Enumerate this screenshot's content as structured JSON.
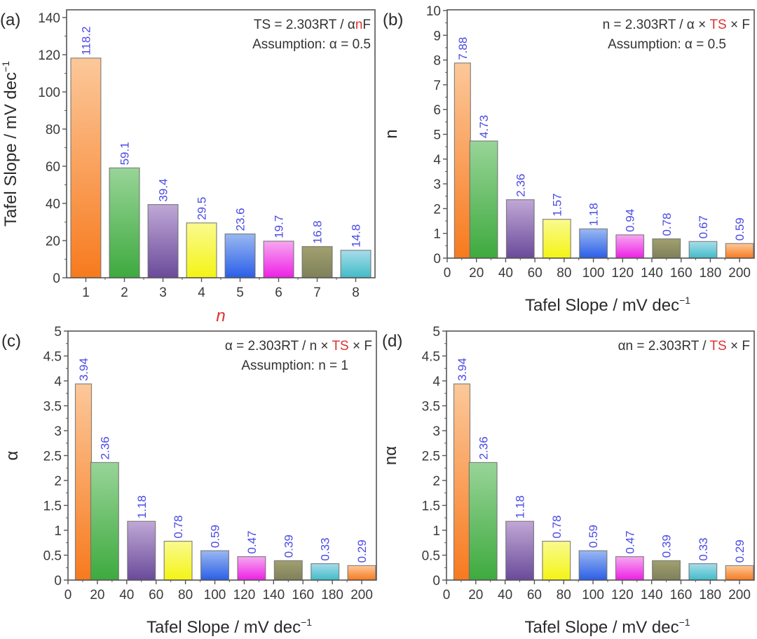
{
  "colors": {
    "value_label": "#4a4ae6",
    "highlight": "#e03030",
    "axis": "#555555",
    "bar_palette": [
      {
        "top": "#fcc89a",
        "bottom": "#f77a1e"
      },
      {
        "top": "#98d498",
        "bottom": "#3eaa3e"
      },
      {
        "top": "#c0a8d6",
        "bottom": "#6a4a9a"
      },
      {
        "top": "#fafa90",
        "bottom": "#f4f414"
      },
      {
        "top": "#9ab8f0",
        "bottom": "#2a5ee8"
      },
      {
        "top": "#f6a8f0",
        "bottom": "#ee20e6"
      },
      {
        "top": "#a0a070",
        "bottom": "#80805a"
      },
      {
        "top": "#a8dcea",
        "bottom": "#40bcc8"
      },
      {
        "top": "#fcc89a",
        "bottom": "#f77a1e"
      }
    ]
  },
  "chart_data": [
    {
      "panel": "(a)",
      "type": "bar",
      "xlabel_italic": "n",
      "ylabel": "Tafel Slope / mV dec",
      "ylabel_sup": "−1",
      "categories": [
        "1",
        "2",
        "3",
        "4",
        "5",
        "6",
        "7",
        "8"
      ],
      "x": [
        1,
        2,
        3,
        4,
        5,
        6,
        7,
        8
      ],
      "values": [
        118.2,
        59.1,
        39.4,
        29.5,
        23.6,
        19.7,
        16.8,
        14.8
      ],
      "value_labels": [
        "118.2",
        "59.1",
        "39.4",
        "29.5",
        "23.6",
        "19.7",
        "16.8",
        "14.8"
      ],
      "xlim": [
        0.5,
        8.5
      ],
      "ylim": [
        0,
        140
      ],
      "yticks": [
        0,
        20,
        40,
        60,
        80,
        100,
        120,
        140
      ],
      "ytick_labels": [
        "0",
        "20",
        "40",
        "60",
        "80",
        "100",
        "120",
        "140"
      ],
      "xticks": [
        1,
        2,
        3,
        4,
        5,
        6,
        7,
        8
      ],
      "xtick_labels": [
        "1",
        "2",
        "3",
        "4",
        "5",
        "6",
        "7",
        "8"
      ],
      "annotation": {
        "line1": [
          {
            "t": "TS = 2.303RT / α"
          },
          {
            "t": "n",
            "hl": true
          },
          {
            "t": "F"
          }
        ],
        "line2": "Assumption: α = 0.5"
      },
      "grid": false
    },
    {
      "panel": "(b)",
      "type": "bar",
      "xlabel": "Tafel Slope / mV dec",
      "xlabel_sup": "−1",
      "ylabel": "n",
      "x": [
        15,
        25,
        50,
        75,
        100,
        125,
        150,
        175,
        200
      ],
      "values": [
        7.88,
        4.73,
        2.36,
        1.57,
        1.18,
        0.94,
        0.78,
        0.67,
        0.59
      ],
      "value_labels": [
        "7.88",
        "4.73",
        "2.36",
        "1.57",
        "1.18",
        "0.94",
        "0.78",
        "0.67",
        "0.59"
      ],
      "xlim": [
        0,
        210
      ],
      "ylim": [
        0,
        10
      ],
      "yticks": [
        0,
        1,
        2,
        3,
        4,
        5,
        6,
        7,
        8,
        9,
        10
      ],
      "ytick_labels": [
        "0",
        "1",
        "2",
        "3",
        "4",
        "5",
        "6",
        "7",
        "8",
        "9",
        "10"
      ],
      "xticks": [
        0,
        20,
        40,
        60,
        80,
        100,
        120,
        140,
        160,
        180,
        200
      ],
      "xtick_labels": [
        "0",
        "20",
        "40",
        "60",
        "80",
        "100",
        "120",
        "140",
        "160",
        "180",
        "200"
      ],
      "annotation": {
        "line1": [
          {
            "t": "n = 2.303RT / α × "
          },
          {
            "t": "TS",
            "hl": true
          },
          {
            "t": " × F"
          }
        ],
        "line2": "Assumption: α = 0.5"
      },
      "grid": false
    },
    {
      "panel": "(c)",
      "type": "bar",
      "xlabel": "Tafel Slope / mV dec",
      "xlabel_sup": "−1",
      "ylabel": "α",
      "x": [
        15,
        25,
        50,
        75,
        100,
        125,
        150,
        175,
        200
      ],
      "values": [
        3.94,
        2.36,
        1.18,
        0.78,
        0.59,
        0.47,
        0.39,
        0.33,
        0.29
      ],
      "value_labels": [
        "3.94",
        "2.36",
        "1.18",
        "0.78",
        "0.59",
        "0.47",
        "0.39",
        "0.33",
        "0.29"
      ],
      "xlim": [
        0,
        210
      ],
      "ylim": [
        0,
        5
      ],
      "yticks": [
        0,
        0.5,
        1,
        1.5,
        2,
        2.5,
        3,
        3.5,
        4,
        4.5,
        5
      ],
      "ytick_labels": [
        "0",
        "0.5",
        "1",
        "1.5",
        "2",
        "2.5",
        "3",
        "3.5",
        "4",
        "4.5",
        "5"
      ],
      "xticks": [
        0,
        20,
        40,
        60,
        80,
        100,
        120,
        140,
        160,
        180,
        200
      ],
      "xtick_labels": [
        "0",
        "20",
        "40",
        "60",
        "80",
        "100",
        "120",
        "140",
        "160",
        "180",
        "200"
      ],
      "annotation": {
        "line1": [
          {
            "t": "α = 2.303RT / n × "
          },
          {
            "t": "TS",
            "hl": true
          },
          {
            "t": " × F"
          }
        ],
        "line2": "Assumption: n = 1"
      },
      "grid": false
    },
    {
      "panel": "(d)",
      "type": "bar",
      "xlabel": "Tafel Slope / mV dec",
      "xlabel_sup": "−1",
      "ylabel": "nα",
      "x": [
        15,
        25,
        50,
        75,
        100,
        125,
        150,
        175,
        200
      ],
      "values": [
        3.94,
        2.36,
        1.18,
        0.78,
        0.59,
        0.47,
        0.39,
        0.33,
        0.29
      ],
      "value_labels": [
        "3.94",
        "2.36",
        "1.18",
        "0.78",
        "0.59",
        "0.47",
        "0.39",
        "0.33",
        "0.29"
      ],
      "xlim": [
        0,
        210
      ],
      "ylim": [
        0,
        5
      ],
      "yticks": [
        0,
        0.5,
        1,
        1.5,
        2,
        2.5,
        3,
        3.5,
        4,
        4.5,
        5
      ],
      "ytick_labels": [
        "0",
        "0.5",
        "1",
        "1.5",
        "2",
        "2.5",
        "3",
        "3.5",
        "4",
        "4.5",
        "5"
      ],
      "xticks": [
        0,
        20,
        40,
        60,
        80,
        100,
        120,
        140,
        160,
        180,
        200
      ],
      "xtick_labels": [
        "0",
        "20",
        "40",
        "60",
        "80",
        "100",
        "120",
        "140",
        "160",
        "180",
        "200"
      ],
      "annotation": {
        "line1": [
          {
            "t": "αn = 2.303RT / "
          },
          {
            "t": "TS",
            "hl": true
          },
          {
            "t": " × F"
          }
        ],
        "line2": ""
      },
      "grid": false
    }
  ]
}
